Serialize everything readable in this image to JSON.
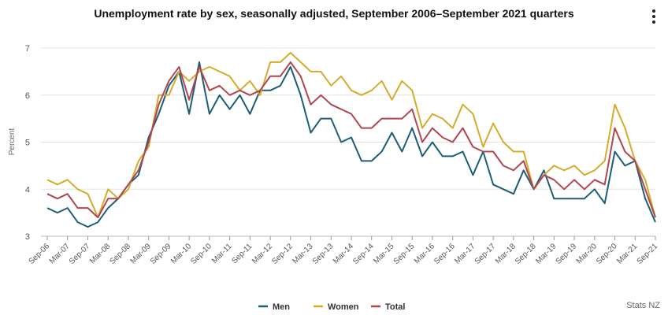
{
  "header": {
    "title": "Unemployment rate by sex, seasonally adjusted, September 2006–September 2021 quarters",
    "menu_icon": "kebab-menu-icon"
  },
  "source": "Stats NZ",
  "chart_data": {
    "type": "line",
    "title": "Unemployment rate by sex, seasonally adjusted, September 2006–September 2021 quarters",
    "xlabel": "",
    "ylabel": "Percent",
    "ylim": [
      3,
      7
    ],
    "yticks": [
      "3",
      "4",
      "5",
      "6",
      "7"
    ],
    "grid": true,
    "legend_position": "bottom-center",
    "tick_labels": [
      "Sep-06",
      "Mar-07",
      "Sep-07",
      "Mar-08",
      "Sep-08",
      "Mar-09",
      "Sep-09",
      "Mar-10",
      "Sep-10",
      "Mar-11",
      "Sep-11",
      "Mar-12",
      "Sep-12",
      "Mar-13",
      "Sep-13",
      "Mar-14",
      "Sep-14",
      "Mar-15",
      "Sep-15",
      "Mar-16",
      "Sep-16",
      "Mar-17",
      "Sep-17",
      "Mar-18",
      "Sep-18",
      "Mar-19",
      "Sep-19",
      "Mar-20",
      "Sep-20",
      "Mar-21",
      "Sep-21"
    ],
    "quarter_count": 61,
    "series": [
      {
        "name": "Men",
        "color": "#1b5e75",
        "values": [
          3.6,
          3.5,
          3.6,
          3.3,
          3.2,
          3.3,
          3.6,
          3.8,
          4.1,
          4.3,
          5.1,
          5.6,
          6.2,
          6.5,
          5.6,
          6.7,
          5.6,
          6.0,
          5.7,
          6.0,
          5.6,
          6.1,
          6.1,
          6.2,
          6.6,
          6.0,
          5.2,
          5.5,
          5.5,
          5.0,
          5.1,
          4.6,
          4.6,
          4.8,
          5.2,
          4.8,
          5.3,
          4.7,
          5.0,
          4.7,
          4.7,
          4.8,
          4.3,
          4.8,
          4.1,
          4.0,
          3.9,
          4.4,
          4.0,
          4.4,
          3.8,
          3.8,
          3.8,
          3.8,
          4.0,
          3.7,
          4.8,
          4.5,
          4.6,
          3.8,
          3.3
        ]
      },
      {
        "name": "Women",
        "color": "#d4ac2b",
        "values": [
          4.2,
          4.1,
          4.2,
          4.0,
          3.9,
          3.4,
          4.0,
          3.8,
          4.0,
          4.6,
          4.9,
          6.0,
          6.0,
          6.5,
          6.3,
          6.5,
          6.6,
          6.5,
          6.4,
          6.1,
          6.3,
          6.0,
          6.7,
          6.7,
          6.9,
          6.7,
          6.5,
          6.5,
          6.2,
          6.4,
          6.1,
          6.0,
          6.1,
          6.3,
          5.9,
          6.3,
          6.1,
          5.3,
          5.6,
          5.5,
          5.3,
          5.8,
          5.6,
          4.9,
          5.4,
          5.0,
          4.8,
          4.8,
          4.0,
          4.3,
          4.5,
          4.4,
          4.5,
          4.3,
          4.4,
          4.6,
          5.8,
          5.3,
          4.6,
          4.2,
          3.4
        ]
      },
      {
        "name": "Total",
        "color": "#b0474f",
        "values": [
          3.9,
          3.8,
          3.9,
          3.6,
          3.6,
          3.4,
          3.8,
          3.8,
          4.1,
          4.4,
          5.0,
          5.8,
          6.3,
          6.6,
          5.9,
          6.6,
          6.1,
          6.2,
          6.0,
          6.1,
          6.0,
          6.1,
          6.4,
          6.4,
          6.7,
          6.4,
          5.8,
          6.0,
          5.8,
          5.7,
          5.6,
          5.3,
          5.3,
          5.5,
          5.5,
          5.5,
          5.7,
          5.0,
          5.3,
          5.1,
          5.0,
          5.3,
          4.9,
          4.8,
          4.8,
          4.5,
          4.4,
          4.6,
          4.0,
          4.3,
          4.2,
          4.0,
          4.2,
          4.0,
          4.2,
          4.1,
          5.3,
          4.8,
          4.6,
          4.0,
          3.4
        ]
      }
    ]
  }
}
